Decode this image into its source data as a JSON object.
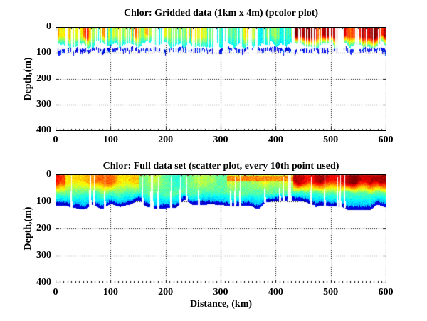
{
  "figure": {
    "background": "#ffffff",
    "text_color": "#000000"
  },
  "plots": [
    {
      "title": "Chlor: Gridded data (1km x 4m) (pcolor plot)",
      "ylabel": "Depth,(m)",
      "xlabel": "",
      "x_tick_labels": [
        "0",
        "100",
        "200",
        "300",
        "400",
        "500",
        "600"
      ],
      "y_tick_labels": [
        "0",
        "100",
        "200",
        "300",
        "400"
      ]
    },
    {
      "title": "Chlor: Full data set (scatter plot, every 10th point used)",
      "ylabel": "Depth,(m)",
      "xlabel": "Distance, (km)",
      "x_tick_labels": [
        "0",
        "100",
        "200",
        "300",
        "400",
        "500",
        "600"
      ],
      "y_tick_labels": [
        "0",
        "100",
        "200",
        "300",
        "400"
      ]
    }
  ],
  "chart_data": [
    {
      "type": "heatmap",
      "title": "Chlor: Gridded data (1km x 4m) (pcolor plot)",
      "xlabel": "",
      "ylabel": "Depth,(m)",
      "xlim": [
        0,
        600
      ],
      "ylim": [
        400,
        0
      ],
      "x_ticks": [
        0,
        100,
        200,
        300,
        400,
        500,
        600
      ],
      "y_ticks": [
        0,
        100,
        200,
        300,
        400
      ],
      "grid": "dotted",
      "legend": "none",
      "colormap": "jet",
      "cell_resolution": "1km x 4m",
      "data_extent": {
        "distance_km": [
          0,
          600
        ],
        "depth_m": [
          0,
          112
        ]
      },
      "description": "Vertical 1-km pcolor columns with many white missing-data gaps; yellow-orange surface water 0-60km, yellow-green 60-170km, green 170-430km with scattered cyan cold columns, red-orange 430-600km; values fade to cyan by ~70m; broken dark-blue dashes near 80-110m.",
      "surface_bands": [
        {
          "km": [
            0,
            60
          ],
          "value": 0.72
        },
        {
          "km": [
            60,
            170
          ],
          "value": 0.65
        },
        {
          "km": [
            170,
            280
          ],
          "value": 0.55
        },
        {
          "km": [
            280,
            430
          ],
          "value": 0.5
        },
        {
          "km": [
            430,
            600
          ],
          "value": 0.92
        }
      ],
      "deep_value": 0.36,
      "main_band_depth_m": [
        52,
        84
      ],
      "blue_dash": {
        "depth_m": [
          76,
          110
        ],
        "value": 0.05,
        "presence": 0.8
      },
      "cold_column": {
        "km": [
          60,
          430
        ],
        "p": 0.1,
        "value": [
          0.34,
          0.46
        ]
      },
      "gap_bands": [
        {
          "km": [
            0,
            40
          ],
          "p": 0.34
        },
        {
          "km": [
            40,
            170
          ],
          "p": 0.24
        },
        {
          "km": [
            170,
            430
          ],
          "p": 0.28
        },
        {
          "km": [
            430,
            600
          ],
          "p": 0.44
        }
      ],
      "seed": 7
    },
    {
      "type": "scatter",
      "title": "Chlor: Full data set (scatter plot, every 10th point used)",
      "xlabel": "Distance, (km)",
      "ylabel": "Depth,(m)",
      "xlim": [
        0,
        600
      ],
      "ylim": [
        400,
        0
      ],
      "x_ticks": [
        0,
        100,
        200,
        300,
        400,
        500,
        600
      ],
      "y_ticks": [
        0,
        100,
        200,
        300,
        400
      ],
      "grid": "dotted",
      "legend": "none",
      "colormap": "jet",
      "data_extent": {
        "distance_km": [
          0,
          600
        ],
        "depth_m": [
          0,
          130
        ]
      },
      "description": "Dense grainy scatter field; orange-red surface near 0km and 430-600km, yellow 18-150km, teal-green 150-430km with a yellow-orange subsurface arc 310-435km, thick ragged dark-blue bottom band 95-130m, ~27 narrow white vertical gaps widening downward, dark speckles along the surface beyond 140km.",
      "surface_bands": [
        {
          "km": [
            0,
            18
          ],
          "value": 0.85
        },
        {
          "km": [
            18,
            150
          ],
          "value": 0.68
        },
        {
          "km": [
            150,
            310
          ],
          "value": 0.5
        },
        {
          "km": [
            310,
            430
          ],
          "value": 0.56
        },
        {
          "km": [
            430,
            600
          ],
          "value": 0.92
        }
      ],
      "subsurface_warm_band": {
        "km": [
          310,
          435
        ],
        "depth_m": [
          4,
          26
        ],
        "value": 0.74
      },
      "layers": {
        "t1_m": 26,
        "t2_m": 68,
        "mid_value": 0.46,
        "lower_value": 0.3
      },
      "bottom_band": {
        "thickness_m": [
          10,
          18
        ],
        "value": 0.05
      },
      "bottom_depth_m": [
        94,
        130
      ],
      "top_speckles": {
        "km_min": 140,
        "depth_max_m": 5,
        "p": 0.1,
        "value": 1.0
      },
      "gap_count": 27,
      "grain": 0.09,
      "seed": 11
    }
  ]
}
